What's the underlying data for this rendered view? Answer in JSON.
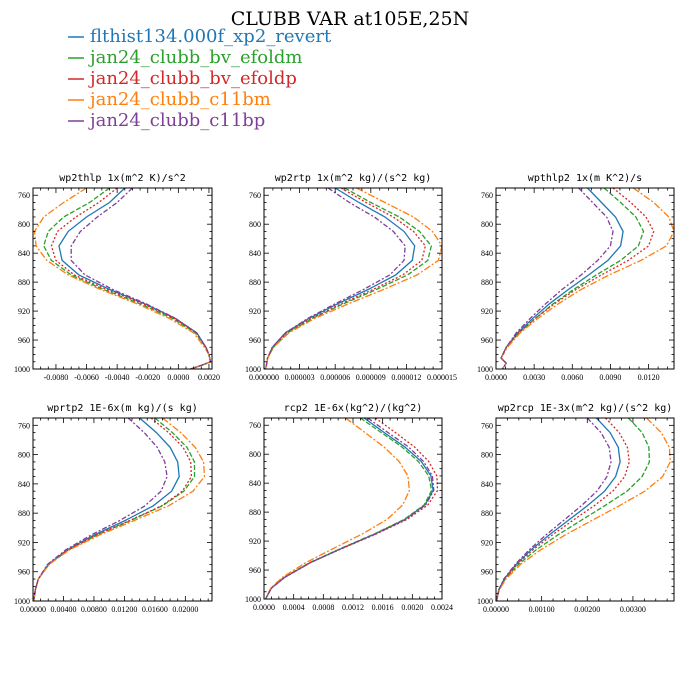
{
  "figure": {
    "title": "CLUBB VAR at105E,25N"
  },
  "legend": [
    {
      "label": "flthist134.000f_xp2_revert",
      "color": "#1f77b4"
    },
    {
      "label": "jan24_clubb_bv_efoldm",
      "color": "#2ca02c"
    },
    {
      "label": "jan24_clubb_bv_efoldp",
      "color": "#d62728"
    },
    {
      "label": "jan24_clubb_c11bm",
      "color": "#ff7f0e"
    },
    {
      "label": "jan24_clubb_c11bp",
      "color": "#7f3f98"
    }
  ],
  "chart_data": [
    {
      "type": "line",
      "title": "wp2thlp  1x(m^2 K)/s^2",
      "xlim": [
        -0.0095,
        0.0022
      ],
      "ylim": [
        1000,
        750
      ],
      "yticks": [
        760,
        800,
        840,
        880,
        920,
        960,
        1000
      ],
      "xticks": [
        -0.008,
        -0.006,
        -0.004,
        -0.002,
        0.0,
        0.002
      ],
      "xtick_labels": [
        "-0.0080",
        "-0.0060",
        "-0.0040",
        "-0.0020",
        "0.0000",
        "0.0020"
      ],
      "y": [
        750,
        770,
        790,
        810,
        830,
        850,
        870,
        890,
        910,
        930,
        950,
        970,
        980,
        990,
        995,
        1000
      ],
      "series": [
        {
          "color": "#1f77b4",
          "values": [
            -0.0035,
            -0.0045,
            -0.006,
            -0.0072,
            -0.0078,
            -0.0076,
            -0.0065,
            -0.0045,
            -0.0022,
            -0.0002,
            0.0012,
            0.0018,
            0.002,
            0.0021,
            0.0015,
            0.0008
          ]
        },
        {
          "color": "#2ca02c",
          "values": [
            -0.0045,
            -0.0058,
            -0.0075,
            -0.0085,
            -0.0088,
            -0.0083,
            -0.007,
            -0.0049,
            -0.0025,
            -0.0004,
            0.0011,
            0.0018,
            0.002,
            0.0021,
            0.0015,
            0.0008
          ]
        },
        {
          "color": "#d62728",
          "values": [
            -0.004,
            -0.0052,
            -0.0067,
            -0.0079,
            -0.0083,
            -0.008,
            -0.0068,
            -0.0047,
            -0.0023,
            -0.0003,
            0.0012,
            0.0018,
            0.002,
            0.0021,
            0.0015,
            0.0008
          ]
        },
        {
          "color": "#ff7f0e",
          "values": [
            -0.006,
            -0.0075,
            -0.0088,
            -0.0094,
            -0.0093,
            -0.0086,
            -0.0072,
            -0.0051,
            -0.0027,
            -0.0006,
            0.001,
            0.0017,
            0.002,
            0.0021,
            0.0015,
            0.0008
          ]
        },
        {
          "color": "#7f3f98",
          "values": [
            -0.003,
            -0.004,
            -0.0053,
            -0.0064,
            -0.007,
            -0.007,
            -0.0061,
            -0.0043,
            -0.0021,
            -0.0002,
            0.0012,
            0.0018,
            0.002,
            0.0021,
            0.0015,
            0.0008
          ]
        }
      ]
    },
    {
      "type": "line",
      "title": "wp2rtp  1x(m^2 kg)/(s^2 kg)",
      "xlim": [
        0.0,
        1.5e-05
      ],
      "ylim": [
        1000,
        750
      ],
      "yticks": [
        760,
        800,
        840,
        880,
        920,
        960,
        1000
      ],
      "xticks": [
        0.0,
        3e-06,
        6e-06,
        9e-06,
        1.2e-05,
        1.5e-05
      ],
      "xtick_labels": [
        "0.000000",
        "0.000003",
        "0.000006",
        "0.000009",
        "0.000012",
        "0.000015"
      ],
      "y": [
        750,
        770,
        790,
        810,
        830,
        850,
        870,
        890,
        910,
        930,
        950,
        970,
        985,
        995,
        1000
      ],
      "series": [
        {
          "color": "#1f77b4",
          "values": [
            6e-06,
            8e-06,
            1.02e-05,
            1.18e-05,
            1.27e-05,
            1.25e-05,
            1.11e-05,
            8.8e-06,
            6.2e-06,
            3.8e-06,
            1.8e-06,
            7e-07,
            3e-07,
            2e-07,
            1e-07
          ]
        },
        {
          "color": "#2ca02c",
          "values": [
            6.8e-06,
            9e-06,
            1.14e-05,
            1.31e-05,
            1.41e-05,
            1.38e-05,
            1.21e-05,
            9.5e-06,
            6.7e-06,
            4.1e-06,
            2e-06,
            8e-07,
            3e-07,
            2e-07,
            1e-07
          ]
        },
        {
          "color": "#d62728",
          "values": [
            6.5e-06,
            8.6e-06,
            1.09e-05,
            1.26e-05,
            1.36e-05,
            1.33e-05,
            1.17e-05,
            9.2e-06,
            6.5e-06,
            4e-06,
            1.9e-06,
            7e-07,
            3e-07,
            2e-07,
            1e-07
          ]
        },
        {
          "color": "#ff7f0e",
          "values": [
            7.8e-06,
            1.02e-05,
            1.26e-05,
            1.42e-05,
            1.5e-05,
            1.47e-05,
            1.29e-05,
            1.01e-05,
            7.1e-06,
            4.3e-06,
            2.1e-06,
            8e-07,
            3e-07,
            2e-07,
            1e-07
          ]
        },
        {
          "color": "#7f3f98",
          "values": [
            5.4e-06,
            7.2e-06,
            9.3e-06,
            1.09e-05,
            1.19e-05,
            1.18e-05,
            1.06e-05,
            8.4e-06,
            6e-06,
            3.7e-06,
            1.8e-06,
            7e-07,
            3e-07,
            2e-07,
            1e-07
          ]
        }
      ]
    },
    {
      "type": "line",
      "title": "wpthlp2  1x(m K^2)/s",
      "xlim": [
        0.0,
        0.014
      ],
      "ylim": [
        1000,
        750
      ],
      "yticks": [
        760,
        800,
        840,
        880,
        920,
        960,
        1000
      ],
      "xticks": [
        0.0,
        0.003,
        0.006,
        0.009,
        0.012
      ],
      "xtick_labels": [
        "0.0000",
        "0.0030",
        "0.0060",
        "0.0090",
        "0.0120"
      ],
      "y": [
        750,
        770,
        790,
        810,
        830,
        850,
        870,
        890,
        910,
        930,
        950,
        970,
        985,
        992,
        1000
      ],
      "series": [
        {
          "color": "#1f77b4",
          "values": [
            0.0072,
            0.0083,
            0.0094,
            0.01,
            0.0098,
            0.0088,
            0.0073,
            0.0057,
            0.0042,
            0.0029,
            0.0017,
            0.0008,
            0.0004,
            0.0008,
            0.0005
          ]
        },
        {
          "color": "#2ca02c",
          "values": [
            0.0085,
            0.0098,
            0.011,
            0.0116,
            0.0112,
            0.0098,
            0.0079,
            0.0061,
            0.0045,
            0.0031,
            0.0018,
            0.0008,
            0.0004,
            0.0008,
            0.0005
          ]
        },
        {
          "color": "#d62728",
          "values": [
            0.0092,
            0.0106,
            0.0118,
            0.0124,
            0.012,
            0.0104,
            0.0083,
            0.0063,
            0.0046,
            0.0031,
            0.0018,
            0.0008,
            0.0004,
            0.0008,
            0.0005
          ]
        },
        {
          "color": "#ff7f0e",
          "values": [
            0.0108,
            0.0124,
            0.0136,
            0.014,
            0.0134,
            0.0114,
            0.0089,
            0.0067,
            0.0049,
            0.0033,
            0.0019,
            0.0009,
            0.0004,
            0.0008,
            0.0005
          ]
        },
        {
          "color": "#7f3f98",
          "values": [
            0.0065,
            0.0076,
            0.0087,
            0.0092,
            0.009,
            0.008,
            0.0067,
            0.0052,
            0.0039,
            0.0027,
            0.0016,
            0.0008,
            0.0004,
            0.0008,
            0.0005
          ]
        }
      ]
    },
    {
      "type": "line",
      "title": "wprtp2  1E-6x(m kg)/(s kg)",
      "xlim": [
        0.0,
        0.0235
      ],
      "ylim": [
        1000,
        750
      ],
      "yticks": [
        760,
        800,
        840,
        880,
        920,
        960,
        1000
      ],
      "xticks": [
        0.0,
        0.004,
        0.008,
        0.012,
        0.016,
        0.02
      ],
      "xtick_labels": [
        "0.00000",
        "0.00400",
        "0.00800",
        "0.01200",
        "0.01600",
        "0.02000"
      ],
      "y": [
        750,
        770,
        790,
        810,
        830,
        850,
        870,
        890,
        910,
        930,
        950,
        970,
        985,
        1000
      ],
      "series": [
        {
          "color": "#1f77b4",
          "values": [
            0.014,
            0.0162,
            0.018,
            0.019,
            0.0192,
            0.0182,
            0.0158,
            0.0121,
            0.008,
            0.0045,
            0.002,
            0.0007,
            0.0003,
            0.0001
          ]
        },
        {
          "color": "#2ca02c",
          "values": [
            0.016,
            0.0183,
            0.0202,
            0.0212,
            0.0212,
            0.0198,
            0.017,
            0.0128,
            0.0084,
            0.0047,
            0.0021,
            0.0007,
            0.0003,
            0.0001
          ]
        },
        {
          "color": "#d62728",
          "values": [
            0.0155,
            0.0178,
            0.0197,
            0.0207,
            0.0208,
            0.0196,
            0.0169,
            0.0127,
            0.0083,
            0.0046,
            0.0021,
            0.0007,
            0.0003,
            0.0001
          ]
        },
        {
          "color": "#ff7f0e",
          "values": [
            0.017,
            0.0194,
            0.0213,
            0.0224,
            0.0225,
            0.021,
            0.0178,
            0.0133,
            0.0087,
            0.0048,
            0.0021,
            0.0007,
            0.0003,
            0.0001
          ]
        },
        {
          "color": "#7f3f98",
          "values": [
            0.0125,
            0.0146,
            0.0163,
            0.0173,
            0.0176,
            0.0168,
            0.0147,
            0.0114,
            0.0076,
            0.0043,
            0.0019,
            0.0007,
            0.0003,
            0.0001
          ]
        }
      ]
    },
    {
      "type": "line",
      "title": "rcp2  1E-6x(kg^2)/(kg^2)",
      "xlim": [
        0.0,
        0.0024
      ],
      "ylim": [
        1000,
        750
      ],
      "yticks": [
        760,
        800,
        840,
        880,
        920,
        960,
        1000
      ],
      "xticks": [
        0.0,
        0.0004,
        0.0008,
        0.0012,
        0.0016,
        0.002,
        0.0024
      ],
      "xtick_labels": [
        "0.0000",
        "0.0004",
        "0.0008",
        "0.0012",
        "0.0016",
        "0.0020",
        "0.0024"
      ],
      "y": [
        750,
        770,
        790,
        810,
        830,
        850,
        870,
        890,
        910,
        930,
        950,
        970,
        985,
        1000
      ],
      "series": [
        {
          "color": "#1f77b4",
          "values": [
            0.00135,
            0.00162,
            0.0019,
            0.00212,
            0.00225,
            0.00228,
            0.00217,
            0.0019,
            0.0015,
            0.00105,
            0.00062,
            0.00028,
            0.0001,
            2e-05
          ]
        },
        {
          "color": "#2ca02c",
          "values": [
            0.0013,
            0.00158,
            0.00186,
            0.00208,
            0.00222,
            0.00226,
            0.00216,
            0.00189,
            0.00149,
            0.00104,
            0.00061,
            0.00027,
            0.0001,
            2e-05
          ]
        },
        {
          "color": "#d62728",
          "values": [
            0.0015,
            0.00177,
            0.00203,
            0.00222,
            0.00233,
            0.00234,
            0.00221,
            0.00193,
            0.00152,
            0.00106,
            0.00062,
            0.00028,
            0.0001,
            2e-05
          ]
        },
        {
          "color": "#ff7f0e",
          "values": [
            0.0011,
            0.00136,
            0.00162,
            0.00182,
            0.00194,
            0.00196,
            0.00187,
            0.00166,
            0.00133,
            0.00094,
            0.00056,
            0.00025,
            9e-05,
            2e-05
          ]
        },
        {
          "color": "#7f3f98",
          "values": [
            0.0014,
            0.00167,
            0.00195,
            0.00215,
            0.00227,
            0.00229,
            0.00218,
            0.00191,
            0.00151,
            0.00105,
            0.00062,
            0.00028,
            0.0001,
            2e-05
          ]
        }
      ]
    },
    {
      "type": "line",
      "title": "wp2rcp  1E-3x(m^2 kg)/(s^2 kg)",
      "xlim": [
        0.0,
        0.0039
      ],
      "ylim": [
        1000,
        750
      ],
      "yticks": [
        760,
        800,
        840,
        880,
        920,
        960,
        1000
      ],
      "xticks": [
        0.0,
        0.001,
        0.002,
        0.003
      ],
      "xtick_labels": [
        "0.00000",
        "0.00100",
        "0.00200",
        "0.00300"
      ],
      "y": [
        750,
        770,
        790,
        810,
        830,
        850,
        870,
        890,
        910,
        930,
        950,
        970,
        985,
        1000
      ],
      "series": [
        {
          "color": "#1f77b4",
          "values": [
            0.0022,
            0.0025,
            0.00268,
            0.00272,
            0.00262,
            0.00238,
            0.002,
            0.00158,
            0.00116,
            0.00077,
            0.00044,
            0.00018,
            6e-05,
            1e-05
          ]
        },
        {
          "color": "#2ca02c",
          "values": [
            0.0029,
            0.0032,
            0.00335,
            0.00336,
            0.0032,
            0.00287,
            0.00238,
            0.00186,
            0.00135,
            0.00088,
            0.00049,
            0.0002,
            7e-05,
            1e-05
          ]
        },
        {
          "color": "#d62728",
          "values": [
            0.0024,
            0.0027,
            0.00288,
            0.00292,
            0.00282,
            0.00256,
            0.00215,
            0.00168,
            0.00123,
            0.00081,
            0.00046,
            0.00019,
            6e-05,
            1e-05
          ]
        },
        {
          "color": "#ff7f0e",
          "values": [
            0.0033,
            0.00362,
            0.0038,
            0.00382,
            0.00365,
            0.00326,
            0.0027,
            0.0021,
            0.00151,
            0.00098,
            0.00054,
            0.00022,
            7e-05,
            1e-05
          ]
        },
        {
          "color": "#7f3f98",
          "values": [
            0.002,
            0.0023,
            0.00248,
            0.00252,
            0.00243,
            0.00221,
            0.00187,
            0.00148,
            0.00109,
            0.00073,
            0.00042,
            0.00017,
            6e-05,
            1e-05
          ]
        }
      ]
    }
  ]
}
